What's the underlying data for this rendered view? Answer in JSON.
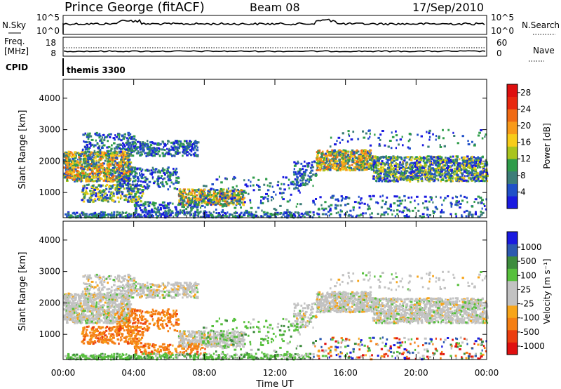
{
  "header": {
    "station": "Prince George (fitACF)",
    "beam": "Beam 08",
    "date": "17/Sep/2010"
  },
  "strips": {
    "nsky_label": "N.Sky",
    "nsky_ticks": [
      "10^5",
      "10^0"
    ],
    "nsearch_label": "N.Search",
    "nsearch_ticks": [
      "10^5",
      "10^0"
    ],
    "freq_label_1": "Freq.",
    "freq_label_2": "[MHz]",
    "freq_ticks": [
      "18",
      "8"
    ],
    "nave_label": "Nave",
    "nave_ticks": [
      "60",
      "0"
    ],
    "cpid_label": "CPID",
    "cpid_value": "themis 3300"
  },
  "colors": {
    "power_scale": [
      "#1a1ae0",
      "#2050c8",
      "#3c7d78",
      "#2f9c4a",
      "#a9c41e",
      "#f7cc1a",
      "#f89a1a",
      "#f06a14",
      "#e8280f",
      "#de0f0f"
    ],
    "velocity_scale": [
      "#1a1ae0",
      "#2d5ab0",
      "#3d8c3d",
      "#57c03d",
      "#c2c2c2",
      "#c2c2c2",
      "#f7a51a",
      "#f57f14",
      "#ec3d0f",
      "#e00f0f"
    ]
  },
  "chart_data": [
    {
      "type": "heatmap",
      "panel": "power",
      "ylabel": "Slant Range [km]",
      "xlabel": "Time UT",
      "x_ticks": [
        "00:00",
        "04:00",
        "08:00",
        "12:00",
        "16:00",
        "20:00",
        "00:00"
      ],
      "y_ticks": [
        "1000",
        "2000",
        "3000",
        "4000"
      ],
      "ylim": [
        200,
        4600
      ],
      "xlim_hours": [
        0,
        24
      ],
      "colorbar_label": "Power [dB]",
      "colorbar_ticks": [
        "4",
        "8",
        "12",
        "16",
        "20",
        "24",
        "28"
      ],
      "colorbar_range": [
        0,
        30
      ]
    },
    {
      "type": "heatmap",
      "panel": "velocity",
      "ylabel": "Slant Range [km]",
      "xlabel": "Time UT",
      "x_ticks": [
        "00:00",
        "04:00",
        "08:00",
        "12:00",
        "16:00",
        "20:00",
        "00:00"
      ],
      "y_ticks": [
        "1000",
        "2000",
        "3000",
        "4000"
      ],
      "ylim": [
        200,
        4600
      ],
      "xlim_hours": [
        0,
        24
      ],
      "colorbar_label": "Velocity [m s⁻¹]",
      "colorbar_ticks": [
        "1000",
        "500",
        "100",
        "25",
        "-25",
        "-100",
        "-500",
        "-1000"
      ]
    }
  ]
}
